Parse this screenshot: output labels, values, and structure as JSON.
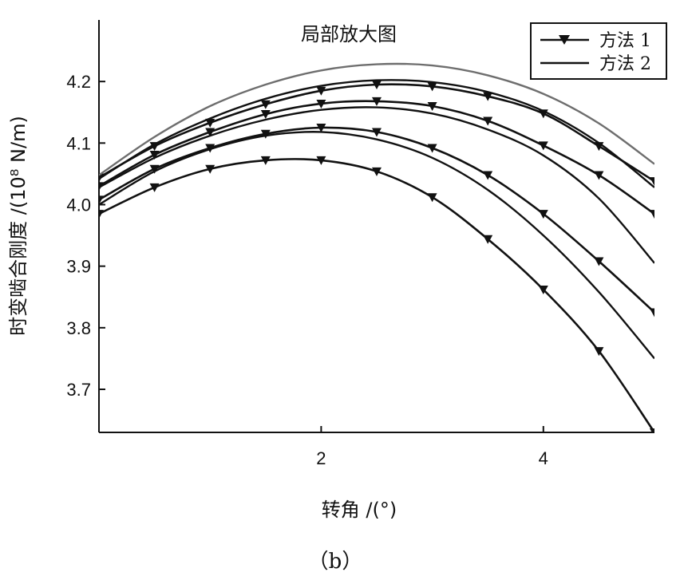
{
  "caption": "（b）",
  "chart_data": {
    "type": "line",
    "title": "局部放大图",
    "xlabel": "转角 /(°)",
    "ylabel": "时变啮合刚度 /(10⁸ N/m)",
    "xlim": [
      0,
      5
    ],
    "ylim": [
      3.63,
      4.3
    ],
    "x_ticks": [
      2,
      4
    ],
    "y_ticks": [
      3.7,
      3.8,
      3.9,
      4.0,
      4.1,
      4.2
    ],
    "y_tick_labels": [
      "3.7",
      "3.8",
      "3.9",
      "4.0",
      "4.1",
      "4.2"
    ],
    "grid": false,
    "legend": {
      "placement": "top-right",
      "entries": [
        "方法 1",
        "方法 2"
      ]
    },
    "colors": {
      "method1": "#111111",
      "method2": "#111111",
      "method2_upper": "#6e6e6e"
    },
    "series": [
      {
        "name": "方法 1",
        "x": [
          0,
          0.5,
          1,
          1.5,
          2,
          2.5,
          3,
          3.5,
          4,
          4.5,
          5
        ],
        "y": [
          3.985,
          4.028,
          4.058,
          4.072,
          4.072,
          4.054,
          4.012,
          3.944,
          3.862,
          3.762,
          3.63
        ]
      },
      {
        "name": "方法 1",
        "x": [
          0,
          0.5,
          1,
          1.5,
          2,
          2.5,
          3,
          3.5,
          4,
          4.5,
          5
        ],
        "y": [
          4.008,
          4.058,
          4.092,
          4.115,
          4.125,
          4.118,
          4.092,
          4.048,
          3.985,
          3.908,
          3.825
        ]
      },
      {
        "name": "方法 1",
        "x": [
          0,
          0.5,
          1,
          1.5,
          2,
          2.5,
          3,
          3.5,
          4,
          4.5,
          5
        ],
        "y": [
          4.03,
          4.081,
          4.118,
          4.147,
          4.164,
          4.168,
          4.16,
          4.136,
          4.096,
          4.048,
          3.985
        ]
      },
      {
        "name": "方法 1",
        "x": [
          0,
          0.5,
          1,
          1.5,
          2,
          2.5,
          3,
          3.5,
          4,
          4.5,
          5
        ],
        "y": [
          4.044,
          4.095,
          4.133,
          4.163,
          4.185,
          4.195,
          4.192,
          4.176,
          4.148,
          4.095,
          4.038
        ]
      },
      {
        "name": "方法 2",
        "x": [
          0,
          0.5,
          1,
          1.5,
          2,
          2.5,
          3,
          3.5,
          4,
          4.5,
          5
        ],
        "y": [
          4.0,
          4.054,
          4.09,
          4.112,
          4.118,
          4.106,
          4.076,
          4.024,
          3.95,
          3.858,
          3.75
        ]
      },
      {
        "name": "方法 2",
        "x": [
          0,
          0.5,
          1,
          1.5,
          2,
          2.5,
          3,
          3.5,
          4,
          4.5,
          5
        ],
        "y": [
          4.028,
          4.076,
          4.112,
          4.138,
          4.154,
          4.158,
          4.148,
          4.122,
          4.08,
          4.01,
          3.905
        ]
      },
      {
        "name": "方法 2",
        "x": [
          0,
          0.5,
          1,
          1.5,
          2,
          2.5,
          3,
          3.5,
          4,
          4.5,
          5
        ],
        "y": [
          4.042,
          4.098,
          4.14,
          4.172,
          4.193,
          4.202,
          4.199,
          4.183,
          4.152,
          4.1,
          4.028
        ]
      },
      {
        "name": "方法 2",
        "x": [
          0,
          0.5,
          1,
          1.5,
          2,
          2.5,
          3,
          3.5,
          4,
          4.5,
          5
        ],
        "y": [
          4.048,
          4.11,
          4.16,
          4.195,
          4.218,
          4.228,
          4.226,
          4.21,
          4.18,
          4.132,
          4.066
        ]
      }
    ]
  }
}
